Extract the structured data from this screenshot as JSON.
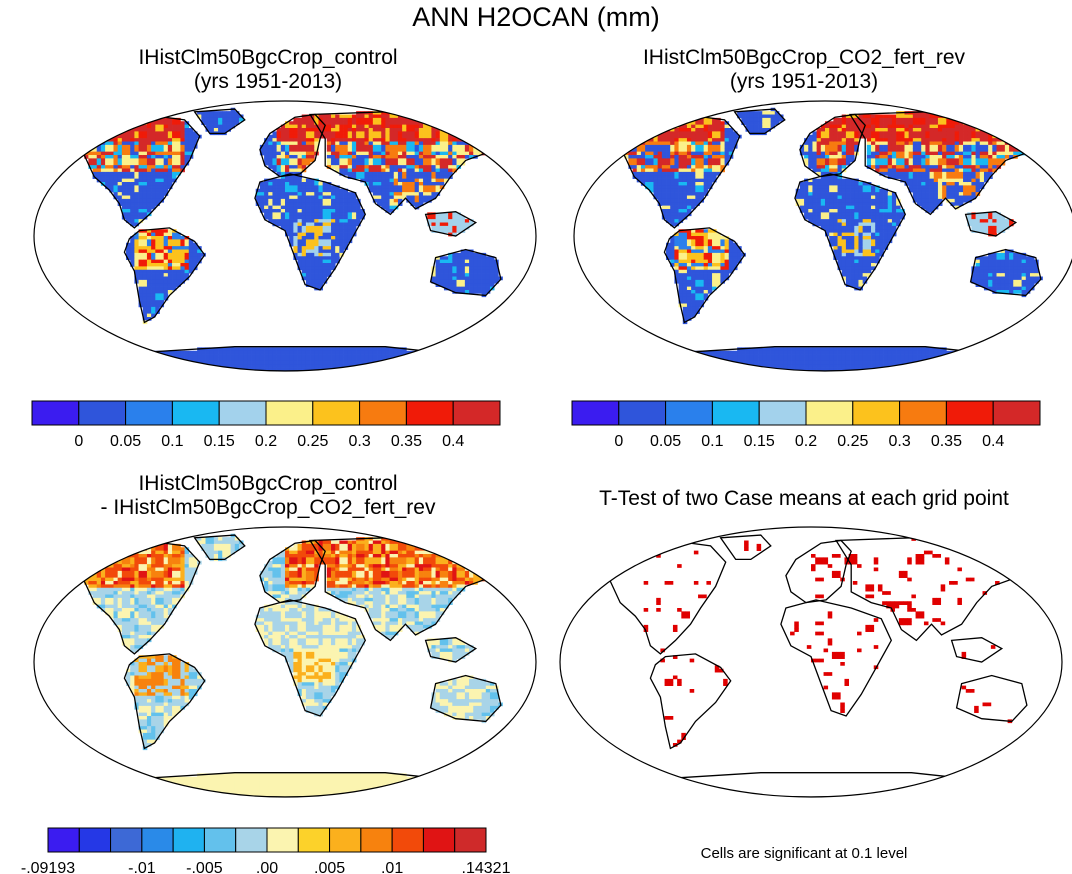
{
  "title": "ANN H2OCAN (mm)",
  "panels": [
    {
      "id": "control",
      "title_line1": "IHistClm50BgcCrop_control",
      "title_line2": "(yrs 1951-2013)"
    },
    {
      "id": "fert_rev",
      "title_line1": "IHistClm50BgcCrop_CO2_fert_rev",
      "title_line2": "(yrs 1951-2013)"
    },
    {
      "id": "difference",
      "title_line1": "IHistClm50BgcCrop_control",
      "title_line2": "- IHistClm50BgcCrop_CO2_fert_rev"
    },
    {
      "id": "ttest",
      "title_line1": "T-Test of two Case means at each grid point",
      "title_line2": ""
    }
  ],
  "colorbar_main": {
    "colors": [
      "#3b1cf0",
      "#2f55db",
      "#2a80ec",
      "#19b8f2",
      "#a3d2ec",
      "#fbf08a",
      "#fcc21d",
      "#f77b10",
      "#f01b08",
      "#d42828"
    ],
    "ticks": [
      "0",
      "0.05",
      "0.1",
      "0.15",
      "0.2",
      "0.25",
      "0.3",
      "0.35",
      "0.4"
    ]
  },
  "colorbar_diff": {
    "colors": [
      "#3b1cf0",
      "#2538e6",
      "#3d69d6",
      "#2a8ae8",
      "#1fb2f0",
      "#63c1ec",
      "#a8d4e8",
      "#fbf4b0",
      "#fcd22a",
      "#fbb01d",
      "#f7820e",
      "#f24a0a",
      "#e01414",
      "#cf2a2a"
    ],
    "ticks": [
      "-.09193",
      "-.01",
      "-.005",
      ".00",
      ".005",
      ".01",
      ".14321"
    ]
  },
  "significance_note": "Cells are significant at 0.1 level",
  "colors": {
    "land_base_main": "#2f55db",
    "land_base_diff": "#fbf4b0",
    "significant_cells": "#e00000"
  }
}
